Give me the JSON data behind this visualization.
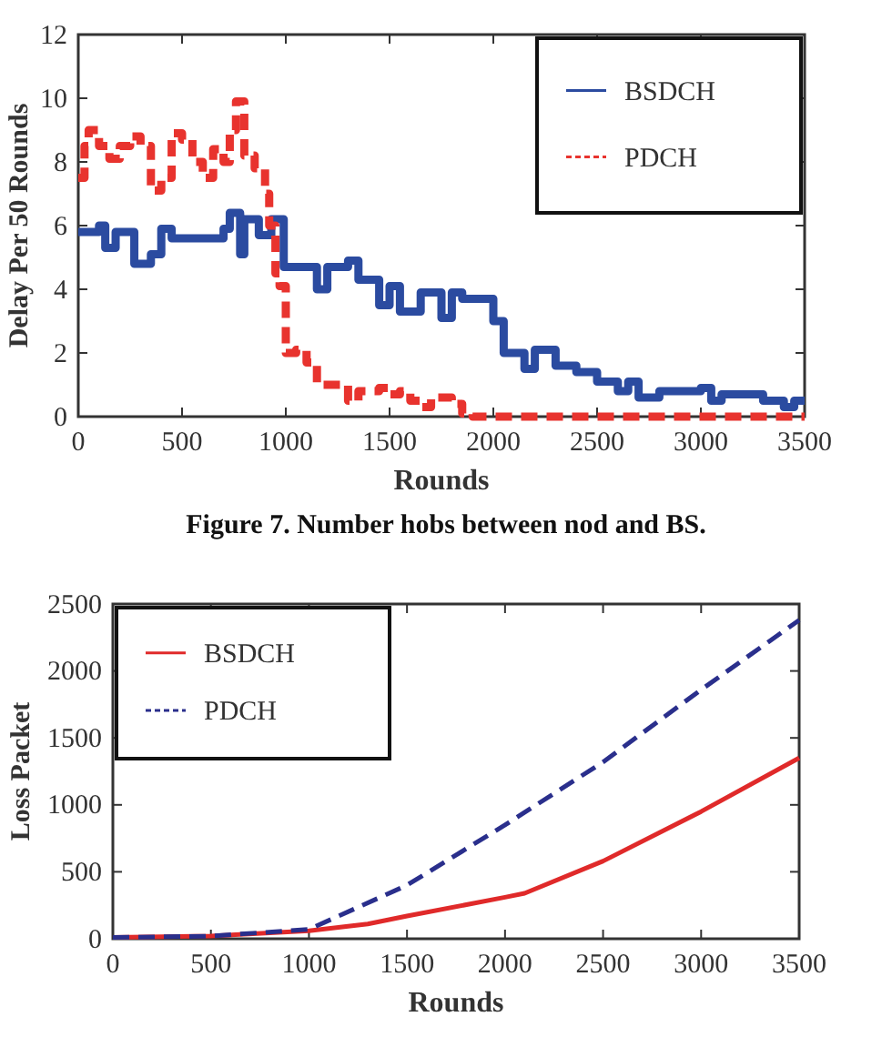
{
  "chart_data": [
    {
      "type": "step",
      "xlabel": "Rounds",
      "ylabel": "Delay Per 50 Rounds",
      "xlim": [
        0,
        3500
      ],
      "xticks": [
        0,
        500,
        1000,
        1500,
        2000,
        2500,
        3000,
        3500
      ],
      "ylim": [
        0,
        12
      ],
      "yticks": [
        0,
        2,
        4,
        6,
        8,
        10,
        12
      ],
      "grid": false,
      "legend": "top right",
      "annotations": [
        "Figure 7. Number hobs between nod and BS."
      ],
      "series": [
        {
          "name": "BSDCH",
          "color": "#2b4ba0",
          "line_style": "solid",
          "x": [
            0,
            100,
            130,
            180,
            270,
            350,
            400,
            450,
            700,
            730,
            780,
            800,
            870,
            930,
            990,
            1150,
            1200,
            1300,
            1350,
            1450,
            1500,
            1550,
            1650,
            1750,
            1800,
            1850,
            2000,
            2050,
            2150,
            2200,
            2300,
            2400,
            2500,
            2600,
            2650,
            2700,
            2800,
            2900,
            3000,
            3050,
            3100,
            3300,
            3400,
            3450,
            3500
          ],
          "values": [
            5.8,
            6.0,
            5.3,
            5.8,
            4.8,
            5.1,
            5.9,
            5.6,
            5.9,
            6.4,
            5.1,
            6.2,
            5.7,
            6.2,
            4.7,
            4.0,
            4.7,
            4.9,
            4.3,
            3.5,
            4.1,
            3.3,
            3.9,
            3.1,
            3.9,
            3.7,
            3.0,
            2.0,
            1.5,
            2.1,
            1.6,
            1.4,
            1.1,
            0.8,
            1.1,
            0.6,
            0.8,
            0.8,
            0.9,
            0.5,
            0.7,
            0.5,
            0.3,
            0.5,
            0.5
          ]
        },
        {
          "name": "PDCH",
          "color": "#e8332e",
          "line_style": "dashed",
          "x": [
            0,
            30,
            50,
            100,
            150,
            200,
            250,
            300,
            350,
            400,
            450,
            500,
            550,
            600,
            650,
            700,
            730,
            760,
            800,
            850,
            900,
            920,
            950,
            970,
            1000,
            1050,
            1100,
            1150,
            1250,
            1300,
            1350,
            1450,
            1500,
            1550,
            1600,
            1650,
            1700,
            1750,
            1800,
            1850,
            1900,
            3500
          ],
          "values": [
            7.5,
            8.5,
            9.0,
            8.5,
            8.1,
            8.5,
            8.8,
            8.5,
            7.1,
            7.5,
            8.9,
            8.7,
            8.0,
            7.5,
            8.4,
            8.0,
            9.0,
            9.9,
            8.2,
            7.8,
            7.0,
            6.0,
            4.5,
            4.1,
            2.0,
            2.1,
            1.7,
            1.0,
            1.0,
            0.5,
            0.8,
            0.9,
            0.7,
            0.8,
            0.5,
            0.3,
            0.6,
            0.6,
            0.4,
            0.1,
            0,
            0
          ]
        }
      ]
    },
    {
      "type": "line",
      "xlabel": "Rounds",
      "ylabel": "Loss Packet",
      "xlim": [
        0,
        3500
      ],
      "xticks": [
        0,
        500,
        1000,
        1500,
        2000,
        2500,
        3000,
        3500
      ],
      "ylim": [
        0,
        2500
      ],
      "yticks": [
        0,
        500,
        1000,
        1500,
        2000,
        2500
      ],
      "grid": false,
      "legend": "top left",
      "series": [
        {
          "name": "BSDCH",
          "color": "#e02a2a",
          "line_style": "solid",
          "x": [
            0,
            500,
            1000,
            1300,
            1500,
            2000,
            2100,
            2500,
            3000,
            3500
          ],
          "values": [
            10,
            20,
            60,
            110,
            170,
            310,
            340,
            580,
            950,
            1350
          ]
        },
        {
          "name": "PDCH",
          "color": "#2a2f8c",
          "line_style": "dashed",
          "x": [
            0,
            500,
            1000,
            1500,
            2000,
            2500,
            3000,
            3500
          ],
          "values": [
            10,
            20,
            70,
            400,
            850,
            1320,
            1860,
            2380
          ]
        }
      ]
    }
  ]
}
